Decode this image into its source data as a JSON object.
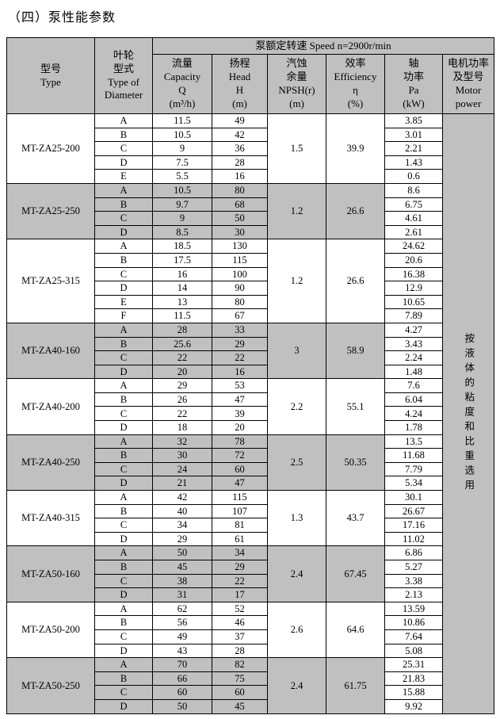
{
  "page_title": "（四）泵性能参数",
  "table": {
    "speed_header": "泵额定转速 Speed n=2900r/min",
    "headers": {
      "model": "型号\nType",
      "impeller": "叶轮\n型式\nType of\nDiameter",
      "capacity": "流量\nCapacity\nQ\n(m³/h)",
      "head": "扬程\nHead\nH\n(m)",
      "npsh": "汽蚀\n余量\nNPSH(r)\n(m)",
      "efficiency": "效率\nEfficiency\nη\n(%)",
      "shaft_power": "轴\n功率\nPa\n(kW)",
      "motor_power": "电机功率\n及型号\nMotor\npower"
    },
    "side_note": "按液体的粘度和比重选用",
    "groups": [
      {
        "model": "MT-ZA25-200",
        "npsh": "1.5",
        "efficiency": "39.9",
        "shaded": false,
        "rows": [
          [
            "A",
            "11.5",
            "49",
            "3.85"
          ],
          [
            "B",
            "10.5",
            "42",
            "3.01"
          ],
          [
            "C",
            "9",
            "36",
            "2.21"
          ],
          [
            "D",
            "7.5",
            "28",
            "1.43"
          ],
          [
            "E",
            "5.5",
            "16",
            "0.6"
          ]
        ]
      },
      {
        "model": "MT-ZA25-250",
        "npsh": "1.2",
        "efficiency": "26.6",
        "shaded": true,
        "rows": [
          [
            "A",
            "10.5",
            "80",
            "8.6"
          ],
          [
            "B",
            "9.7",
            "68",
            "6.75"
          ],
          [
            "C",
            "9",
            "50",
            "4.61"
          ],
          [
            "D",
            "8.5",
            "30",
            "2.61"
          ]
        ]
      },
      {
        "model": "MT-ZA25-315",
        "npsh": "1.2",
        "efficiency": "26.6",
        "shaded": false,
        "rows": [
          [
            "A",
            "18.5",
            "130",
            "24.62"
          ],
          [
            "B",
            "17.5",
            "115",
            "20.6"
          ],
          [
            "C",
            "16",
            "100",
            "16.38"
          ],
          [
            "D",
            "14",
            "90",
            "12.9"
          ],
          [
            "E",
            "13",
            "80",
            "10.65"
          ],
          [
            "F",
            "11.5",
            "67",
            "7.89"
          ]
        ]
      },
      {
        "model": "MT-ZA40-160",
        "npsh": "3",
        "efficiency": "58.9",
        "shaded": true,
        "rows": [
          [
            "A",
            "28",
            "33",
            "4.27"
          ],
          [
            "B",
            "25.6",
            "29",
            "3.43"
          ],
          [
            "C",
            "22",
            "22",
            "2.24"
          ],
          [
            "D",
            "20",
            "16",
            "1.48"
          ]
        ]
      },
      {
        "model": "MT-ZA40-200",
        "npsh": "2.2",
        "efficiency": "55.1",
        "shaded": false,
        "rows": [
          [
            "A",
            "29",
            "53",
            "7.6"
          ],
          [
            "B",
            "26",
            "47",
            "6.04"
          ],
          [
            "C",
            "22",
            "39",
            "4.24"
          ],
          [
            "D",
            "18",
            "20",
            "1.78"
          ]
        ]
      },
      {
        "model": "MT-ZA40-250",
        "npsh": "2.5",
        "efficiency": "50.35",
        "shaded": true,
        "rows": [
          [
            "A",
            "32",
            "78",
            "13.5"
          ],
          [
            "B",
            "30",
            "72",
            "11.68"
          ],
          [
            "C",
            "24",
            "60",
            "7.79"
          ],
          [
            "D",
            "21",
            "47",
            "5.34"
          ]
        ]
      },
      {
        "model": "MT-ZA40-315",
        "npsh": "1.3",
        "efficiency": "43.7",
        "shaded": false,
        "rows": [
          [
            "A",
            "42",
            "115",
            "30.1"
          ],
          [
            "B",
            "40",
            "107",
            "26.67"
          ],
          [
            "C",
            "34",
            "81",
            "17.16"
          ],
          [
            "D",
            "29",
            "61",
            "11.02"
          ]
        ]
      },
      {
        "model": "MT-ZA50-160",
        "npsh": "2.4",
        "efficiency": "67.45",
        "shaded": true,
        "rows": [
          [
            "A",
            "50",
            "34",
            "6.86"
          ],
          [
            "B",
            "45",
            "29",
            "5.27"
          ],
          [
            "C",
            "38",
            "22",
            "3.38"
          ],
          [
            "D",
            "31",
            "17",
            "2.13"
          ]
        ]
      },
      {
        "model": "MT-ZA50-200",
        "npsh": "2.6",
        "efficiency": "64.6",
        "shaded": false,
        "rows": [
          [
            "A",
            "62",
            "52",
            "13.59"
          ],
          [
            "B",
            "56",
            "46",
            "10.86"
          ],
          [
            "C",
            "49",
            "37",
            "7.64"
          ],
          [
            "D",
            "43",
            "28",
            "5.08"
          ]
        ]
      },
      {
        "model": "MT-ZA50-250",
        "npsh": "2.4",
        "efficiency": "61.75",
        "shaded": true,
        "rows": [
          [
            "A",
            "70",
            "82",
            "25.31"
          ],
          [
            "B",
            "66",
            "75",
            "21.83"
          ],
          [
            "C",
            "60",
            "60",
            "15.88"
          ],
          [
            "D",
            "50",
            "45",
            "9.92"
          ]
        ]
      }
    ]
  },
  "colors": {
    "group_shade": "#c0c0c0",
    "border": "#000000",
    "background": "#ffffff"
  }
}
